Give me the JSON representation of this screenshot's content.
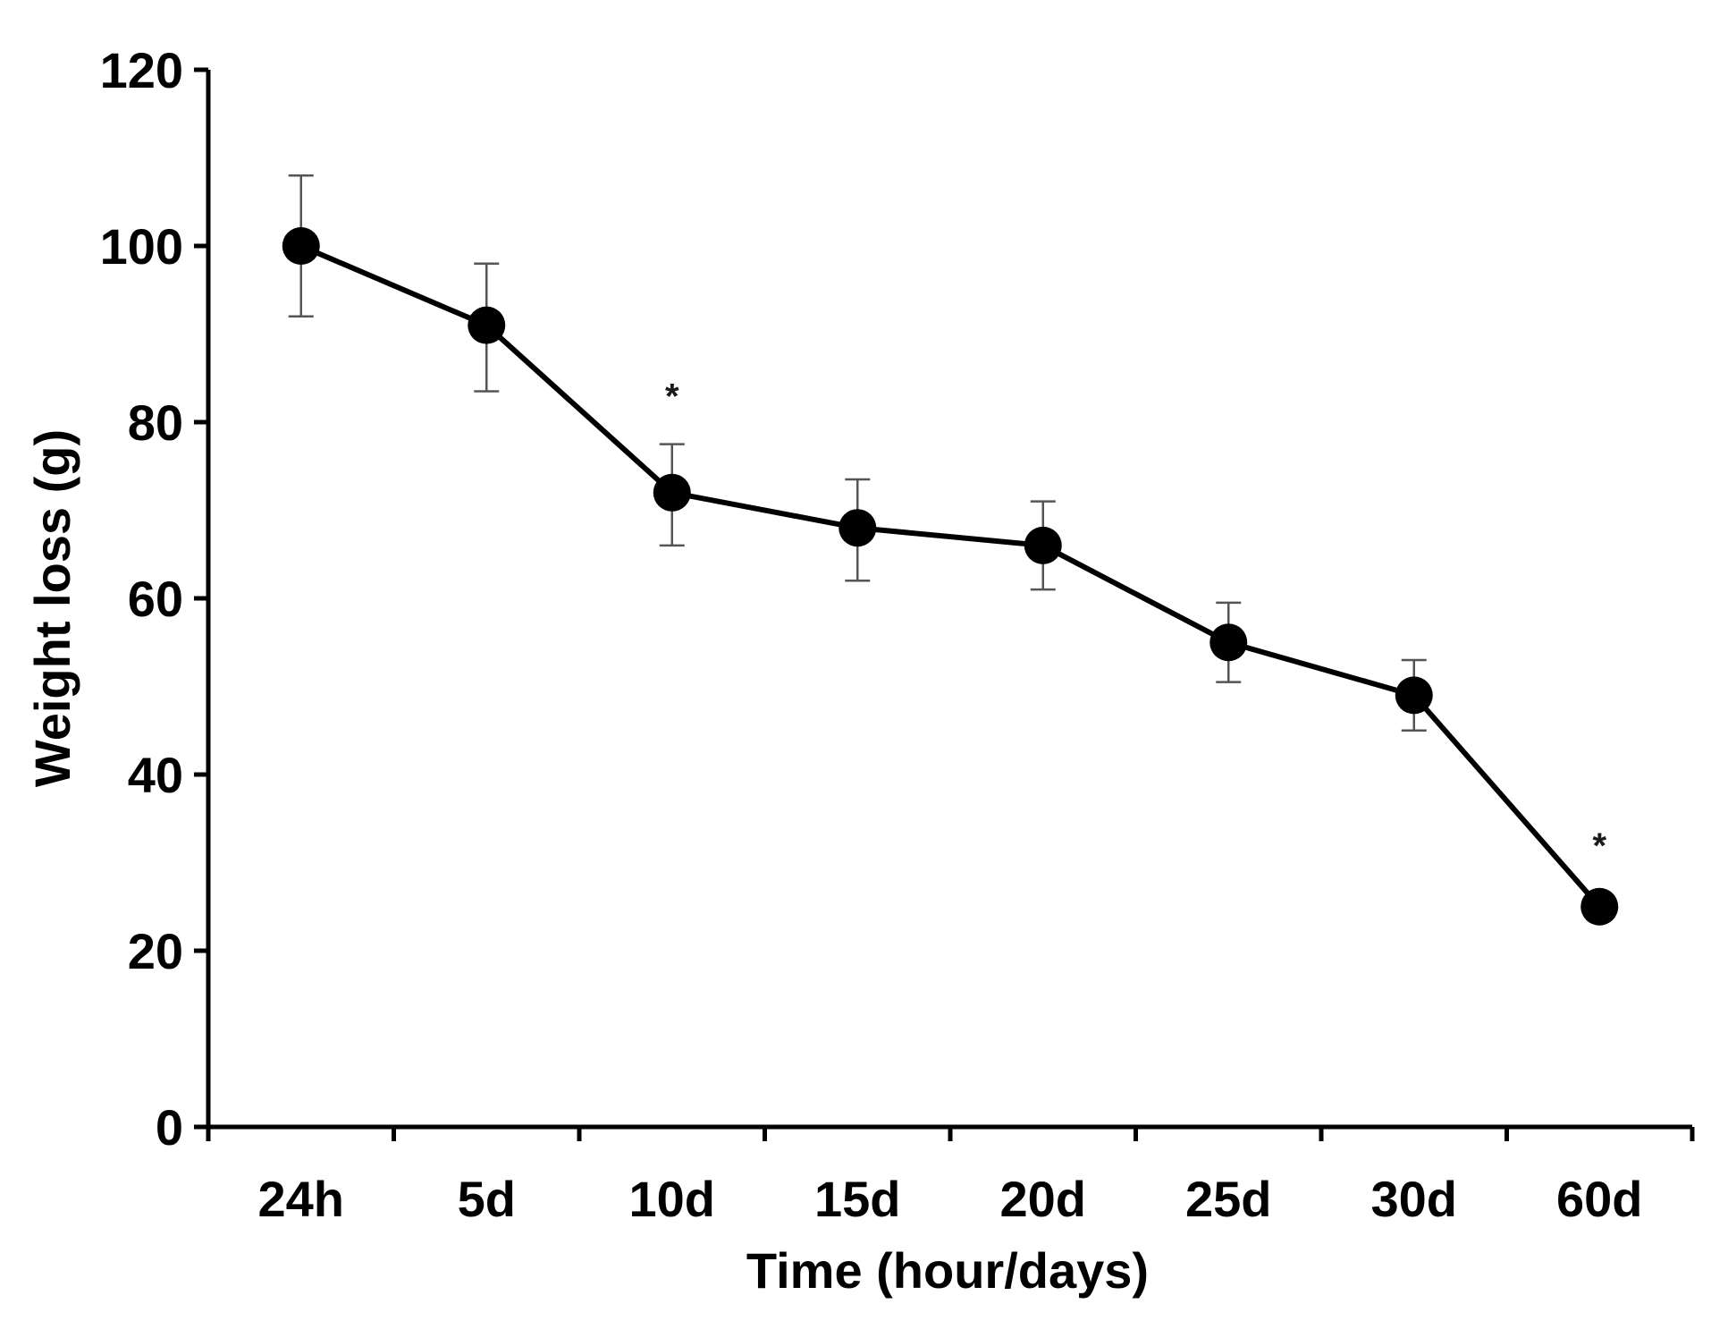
{
  "chart_data": {
    "type": "line",
    "title": "",
    "xlabel": "Time (hour/days)",
    "ylabel": "Weight loss (g)",
    "categories": [
      "24h",
      "5d",
      "10d",
      "15d",
      "20d",
      "25d",
      "30d",
      "60d"
    ],
    "series": [
      {
        "values": [
          100,
          91,
          72,
          68,
          66,
          55,
          49,
          25
        ],
        "error_upper": [
          108,
          98,
          77.5,
          73.5,
          71,
          59.5,
          53,
          25
        ],
        "error_lower": [
          92,
          83.5,
          66,
          62,
          61,
          50.5,
          45,
          25
        ],
        "color": "#000000",
        "marker": "circle"
      }
    ],
    "ylim": [
      0,
      120
    ],
    "yticks": [
      0,
      20,
      40,
      60,
      80,
      100,
      120
    ],
    "grid": false,
    "legend": "none",
    "annotations": [
      {
        "category": "10d",
        "text": "*",
        "y": 83
      },
      {
        "category": "60d",
        "text": "*",
        "y": 32
      }
    ]
  }
}
